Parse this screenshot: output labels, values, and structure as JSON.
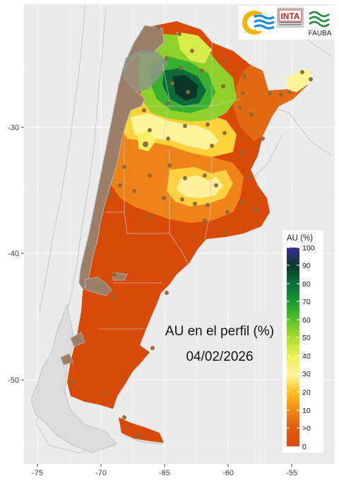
{
  "map": {
    "title": "AU en el perfil (%)",
    "date": "04/02/2026",
    "x_ticks": [
      "-75",
      "-70",
      "-65",
      "-60",
      "-55"
    ],
    "y_ticks": [
      "-30",
      "-40",
      "-50"
    ],
    "background_color": "#ebebeb"
  },
  "legend": {
    "title": "AU (%)",
    "labels": [
      "100",
      "90",
      "80",
      "70",
      "60",
      "50",
      "40",
      "30",
      "20",
      "10",
      ">0",
      "0"
    ],
    "colors": [
      "#3a2c9e",
      "#0b3b2e",
      "#0d6b3a",
      "#1a9a32",
      "#58c02a",
      "#a8dc2c",
      "#f0f05a",
      "#fff49a",
      "#ffc020",
      "#f08a18",
      "#e05a10",
      "#d94a08"
    ]
  },
  "logos": {
    "inta": "INTA",
    "fauba": "FAUBA"
  }
}
